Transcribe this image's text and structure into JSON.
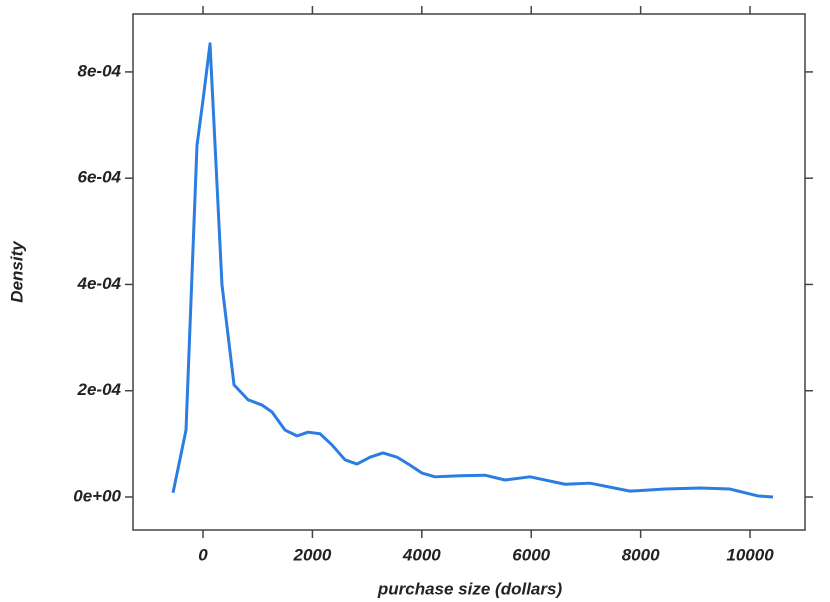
{
  "chart_data": {
    "type": "line",
    "x_label": "purchase size (dollars)",
    "y_label": "Density",
    "series": [
      {
        "color": "#2a7de1",
        "x": [
          -548,
          -311,
          -110,
          0,
          128,
          347,
          567,
          823,
          1079,
          1261,
          1499,
          1718,
          1920,
          2139,
          2358,
          2596,
          2815,
          3053,
          3291,
          3547,
          3784,
          4004,
          4241,
          4698,
          5155,
          5521,
          5978,
          6618,
          7075,
          7806,
          8446,
          9086,
          9634,
          10146,
          10420
        ],
        "values": [
          8e-06,
          0.000126,
          0.000662,
          0.000747,
          0.000853,
          0.000399,
          0.000211,
          0.000183,
          0.000173,
          0.00016,
          0.000126,
          0.000115,
          0.000122,
          0.000119,
          9.8e-05,
          7e-05,
          6.2e-05,
          7.5e-05,
          8.3e-05,
          7.5e-05,
          6e-05,
          4.5e-05,
          3.8e-05,
          4e-05,
          4.1e-05,
          3.2e-05,
          3.8e-05,
          2.4e-05,
          2.6e-05,
          1.1e-05,
          1.5e-05,
          1.7e-05,
          1.5e-05,
          2e-06,
          0
        ]
      }
    ],
    "xlim": [
      -1280,
      11005
    ],
    "ylim": [
      -6.21e-05,
      0.000909
    ],
    "xticks": [
      0,
      2000,
      4000,
      6000,
      8000,
      10000
    ],
    "yticks": [
      {
        "value": 0,
        "label": "0e+00"
      },
      {
        "value": 0.0002,
        "label": "2e-04"
      },
      {
        "value": 0.0004,
        "label": "4e-04"
      },
      {
        "value": 0.0006,
        "label": "6e-04"
      },
      {
        "value": 0.0008,
        "label": "8e-04"
      }
    ]
  }
}
